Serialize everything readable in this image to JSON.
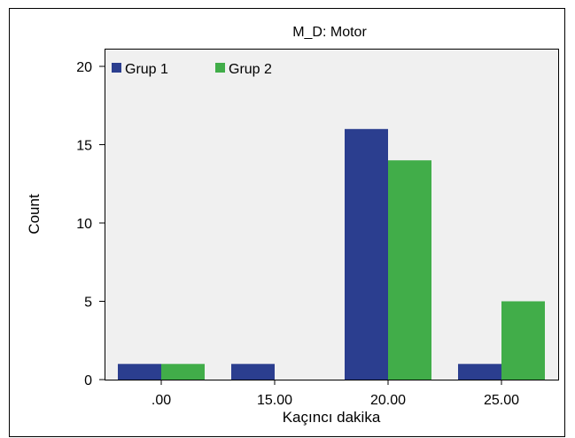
{
  "chart_data": {
    "type": "bar",
    "title": "M_D: Motor",
    "xlabel": "Kaçıncı dakika",
    "ylabel": "Count",
    "categories": [
      ".00",
      "15.00",
      "20.00",
      "25.00"
    ],
    "series": [
      {
        "name": "Grup 1",
        "values": [
          1,
          1,
          16,
          1
        ],
        "color": "#2b3e8f"
      },
      {
        "name": "Grup 2",
        "values": [
          1,
          0,
          14,
          5
        ],
        "color": "#41ad49"
      }
    ],
    "ylim": [
      0,
      20
    ],
    "yticks": [
      0,
      5,
      10,
      15,
      20
    ],
    "grid": false,
    "legend": "top-left",
    "plot_background": "#f0f0f0"
  }
}
